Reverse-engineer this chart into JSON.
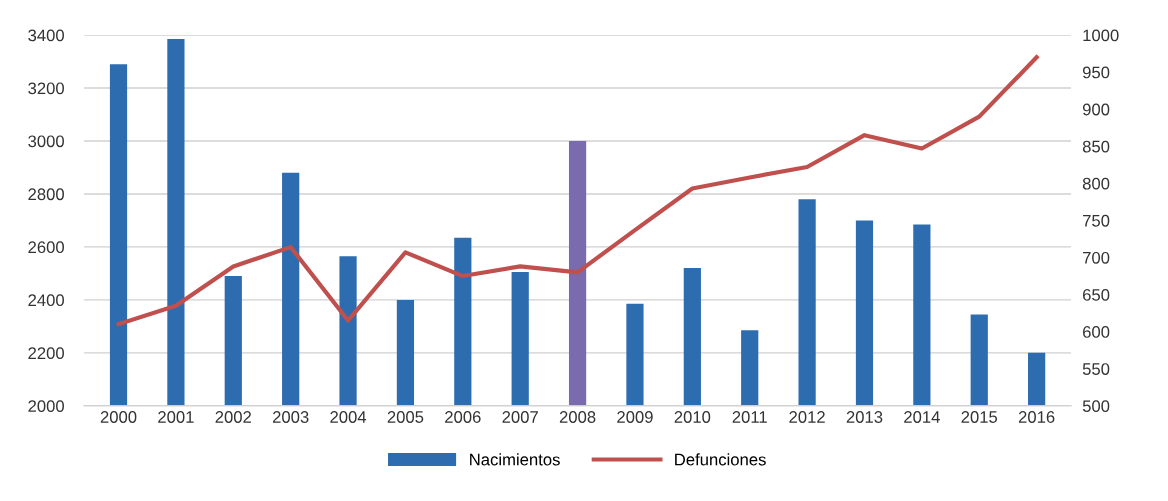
{
  "chart_data": {
    "type": "bar",
    "categories": [
      "2000",
      "2001",
      "2002",
      "2003",
      "2004",
      "2005",
      "2006",
      "2007",
      "2008",
      "2009",
      "2010",
      "2011",
      "2012",
      "2013",
      "2014",
      "2015",
      "2016"
    ],
    "series": [
      {
        "name": "Nacimientos",
        "color": "#2e6cb0",
        "colors": [
          "#2e6cb0",
          "#2e6cb0",
          "#2e6cb0",
          "#2e6cb0",
          "#2e6cb0",
          "#2e6cb0",
          "#2e6cb0",
          "#2e6cb0",
          "#7a6aae",
          "#2e6cb0",
          "#2e6cb0",
          "#2e6cb0",
          "#2e6cb0",
          "#2e6cb0",
          "#2e6cb0",
          "#2e6cb0",
          "#2e6cb0"
        ],
        "values": [
          3290,
          3385,
          2490,
          2880,
          2565,
          2400,
          2635,
          2505,
          3000,
          2385,
          2520,
          2285,
          2780,
          2700,
          2685,
          2345,
          2200
        ]
      },
      {
        "name": "Defunciones",
        "type": "line",
        "axis": "y2",
        "color": "#c0504d",
        "values": [
          610,
          635,
          688,
          714,
          615,
          707,
          675,
          688,
          680,
          737,
          793,
          808,
          822,
          865,
          847,
          890,
          970
        ]
      }
    ],
    "ylim": [
      2000,
      3400
    ],
    "yticks": [
      2000,
      2200,
      2400,
      2600,
      2800,
      3000,
      3200,
      3400
    ],
    "y2lim": [
      500,
      1000
    ],
    "y2ticks": [
      500,
      550,
      600,
      650,
      700,
      750,
      800,
      850,
      900,
      950,
      1000
    ],
    "grid": "y",
    "legend": "bottom",
    "marker": "none",
    "line_style": "solid"
  }
}
